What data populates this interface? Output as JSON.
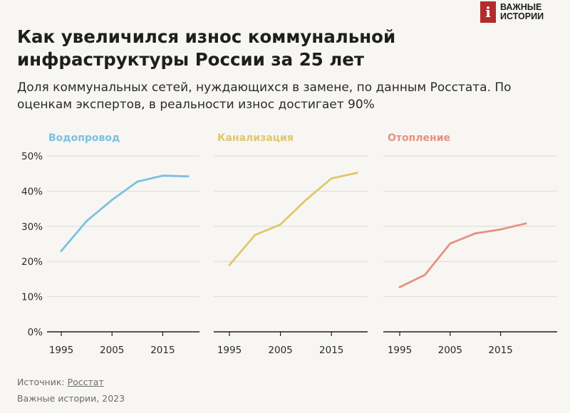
{
  "logo": {
    "mark": "i",
    "line1": "ВАЖНЫЕ",
    "line2": "ИСТОРИИ"
  },
  "title": "Как увеличился износ коммунальной инфраструктуры России за 25 лет",
  "subtitle": "Доля коммунальных сетей, нуждающихся в замене, по данным Росстата. По оценкам экспертов, в реальности износ достигает 90%",
  "footer": {
    "source_label": "Источник: ",
    "source_link": "Росстат",
    "credit": "Важные истории, 2023"
  },
  "chart_data": [
    {
      "type": "line",
      "title": "Водопровод",
      "color": "#7cc0e0",
      "x": [
        1995,
        2000,
        2005,
        2010,
        2015,
        2020
      ],
      "values": [
        23,
        31.5,
        37.5,
        42.7,
        44.4,
        44.2
      ],
      "xticks": [
        "1995",
        "2005",
        "2015"
      ],
      "yticks": [
        "0%",
        "10%",
        "20%",
        "30%",
        "40%",
        "50%"
      ],
      "ylim": [
        0,
        50
      ],
      "grid": true
    },
    {
      "type": "line",
      "title": "Канализация",
      "color": "#ddc96a",
      "x": [
        1995,
        2000,
        2005,
        2010,
        2015,
        2020
      ],
      "values": [
        19,
        27.5,
        30.5,
        37.5,
        43.6,
        45.2
      ],
      "xticks": [
        "1995",
        "2005",
        "2015"
      ],
      "ylim": [
        0,
        50
      ],
      "grid": true
    },
    {
      "type": "line",
      "title": "Отопление",
      "color": "#e79080",
      "x": [
        1995,
        2000,
        2005,
        2010,
        2015,
        2020
      ],
      "values": [
        12.7,
        16.2,
        25.1,
        28,
        29.1,
        30.8
      ],
      "xticks": [
        "1995",
        "2005",
        "2015"
      ],
      "ylim": [
        0,
        50
      ],
      "grid": true
    }
  ]
}
